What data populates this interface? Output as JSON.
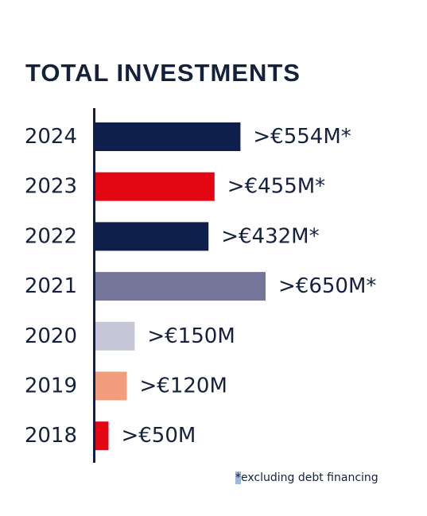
{
  "chart_data": {
    "type": "bar",
    "orientation": "horizontal",
    "title": "TOTAL INVESTMENTS",
    "unit": "€M",
    "categories": [
      "2024",
      "2023",
      "2022",
      "2021",
      "2020",
      "2019",
      "2018"
    ],
    "values": [
      554,
      455,
      432,
      650,
      150,
      120,
      50
    ],
    "data_labels": [
      ">€554M*",
      ">€455M*",
      ">€432M*",
      ">€650M*",
      ">€150M",
      ">€120M",
      ">€50M"
    ],
    "colors": [
      "#0f1f4b",
      "#e30613",
      "#0f1f4b",
      "#737698",
      "#c6c6d9",
      "#f19c7d",
      "#e30613"
    ],
    "axis_color": "#0f1f4b",
    "grid": false,
    "legend": "none"
  },
  "footnote": {
    "marker": "*",
    "text": "excluding debt financing"
  }
}
